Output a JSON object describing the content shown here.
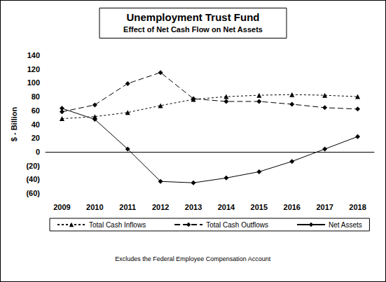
{
  "chart_data": {
    "type": "line",
    "title": "Unemployment Trust Fund",
    "subtitle": "Effect of Net Cash Flow on Net Assets",
    "y_label": "$ - Billion",
    "annotations": [
      "Excludes the Federal Employee Compensation Account"
    ],
    "categories": [
      "2009",
      "2010",
      "2011",
      "2012",
      "2013",
      "2014",
      "2015",
      "2016",
      "2017",
      "2018"
    ],
    "series": [
      {
        "name": "Total Cash Inflows",
        "color": "#000000",
        "marker": "triangle",
        "line_style": "dotted",
        "values": [
          48,
          51,
          57,
          67,
          76,
          80,
          82,
          83,
          82,
          80
        ]
      },
      {
        "name": "Total Cash Outflows",
        "color": "#000000",
        "marker": "diamond",
        "line_style": "dashed",
        "values": [
          58,
          68,
          99,
          115,
          77,
          73,
          73,
          69,
          64,
          62
        ]
      },
      {
        "name": "Net Assets",
        "color": "#000000",
        "marker": "diamond",
        "line_style": "solid",
        "values": [
          63,
          47,
          4,
          -43,
          -45,
          -38,
          -29,
          -14,
          4,
          22
        ]
      }
    ],
    "ylim": [
      -60,
      140
    ],
    "yticks": [
      {
        "value": -60,
        "label": "(60)"
      },
      {
        "value": -40,
        "label": "(40)"
      },
      {
        "value": -20,
        "label": "(20)"
      },
      0,
      20,
      40,
      60,
      80,
      100,
      120,
      140
    ],
    "grid": false,
    "legend": "bottom"
  }
}
